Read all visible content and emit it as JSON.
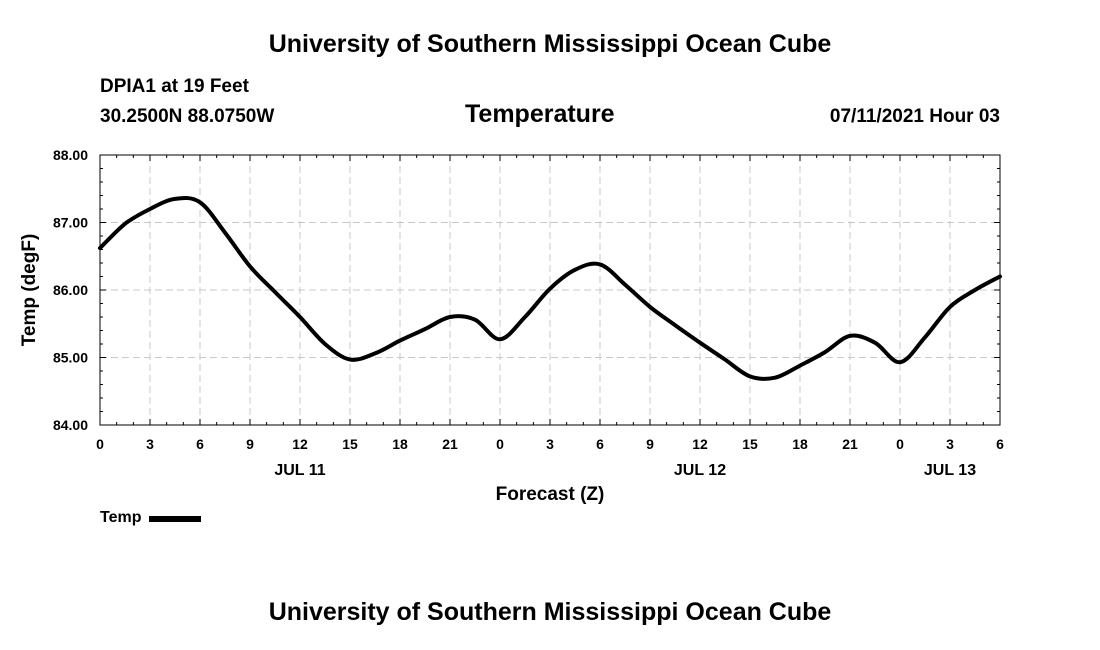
{
  "header": {
    "title": "University of Southern Mississippi Ocean Cube",
    "station": "DPIA1 at 19 Feet",
    "coords": "30.2500N  88.0750W",
    "datetime": "07/11/2021 Hour 03"
  },
  "footer": {
    "title": "University of Southern Mississippi Ocean Cube"
  },
  "chart_data": {
    "type": "line",
    "title": "Temperature",
    "xlabel": "Forecast (Z)",
    "ylabel": "Temp (degF)",
    "ylim": [
      84.0,
      88.0
    ],
    "yticks": [
      "84.00",
      "85.00",
      "86.00",
      "87.00",
      "88.00"
    ],
    "xlim": [
      0,
      54
    ],
    "xticks": [
      {
        "x": 0,
        "label": "0"
      },
      {
        "x": 3,
        "label": "3"
      },
      {
        "x": 6,
        "label": "6"
      },
      {
        "x": 9,
        "label": "9"
      },
      {
        "x": 12,
        "label": "12"
      },
      {
        "x": 15,
        "label": "15"
      },
      {
        "x": 18,
        "label": "18"
      },
      {
        "x": 21,
        "label": "21"
      },
      {
        "x": 24,
        "label": "0"
      },
      {
        "x": 27,
        "label": "3"
      },
      {
        "x": 30,
        "label": "6"
      },
      {
        "x": 33,
        "label": "9"
      },
      {
        "x": 36,
        "label": "12"
      },
      {
        "x": 39,
        "label": "15"
      },
      {
        "x": 42,
        "label": "18"
      },
      {
        "x": 45,
        "label": "21"
      },
      {
        "x": 48,
        "label": "0"
      },
      {
        "x": 51,
        "label": "3"
      },
      {
        "x": 54,
        "label": "6"
      }
    ],
    "date_labels": [
      {
        "x": 12,
        "label": "JUL 11"
      },
      {
        "x": 36,
        "label": "JUL 12"
      },
      {
        "x": 51,
        "label": "JUL 13"
      }
    ],
    "grid": true,
    "legend": {
      "position": "bottom-left",
      "label": "Temp"
    },
    "series": [
      {
        "name": "Temp",
        "x": [
          0,
          1.5,
          3,
          4.5,
          6,
          7.5,
          9,
          10.5,
          12,
          13.5,
          15,
          16.5,
          18,
          19.5,
          21,
          22.5,
          24,
          25.5,
          27,
          28.5,
          30,
          31.5,
          33,
          34.5,
          36,
          37.5,
          39,
          40.5,
          42,
          43.5,
          45,
          46.5,
          48,
          49.5,
          51,
          52.5,
          54
        ],
        "values": [
          86.62,
          86.98,
          87.2,
          87.35,
          87.3,
          86.85,
          86.35,
          85.97,
          85.6,
          85.2,
          84.97,
          85.06,
          85.25,
          85.42,
          85.6,
          85.56,
          85.27,
          85.6,
          86.02,
          86.3,
          86.38,
          86.08,
          85.75,
          85.48,
          85.22,
          84.97,
          84.72,
          84.7,
          84.88,
          85.08,
          85.32,
          85.22,
          84.93,
          85.3,
          85.75,
          86.0,
          86.2
        ]
      }
    ]
  }
}
